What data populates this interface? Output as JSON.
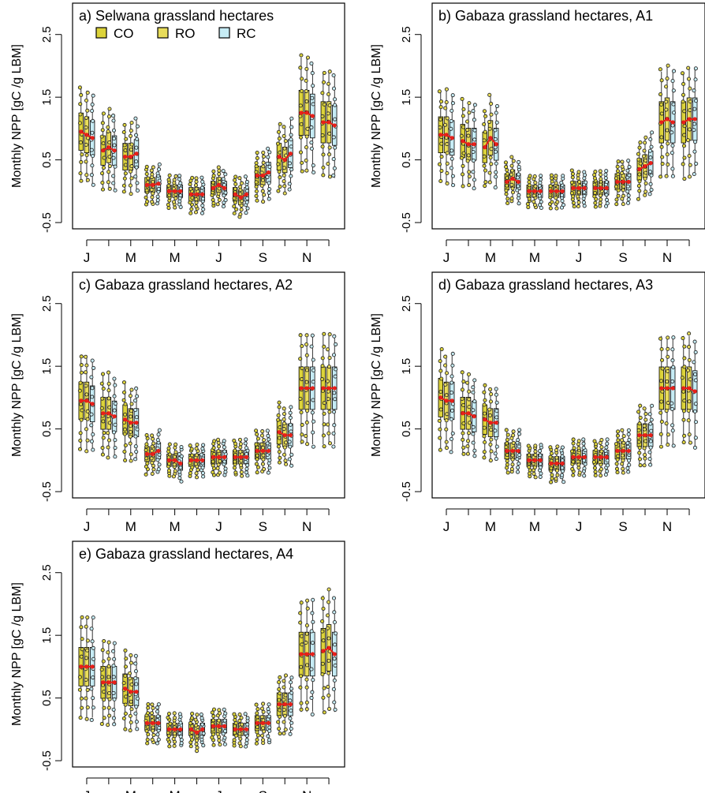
{
  "colors": {
    "CO": "#dcd33a",
    "RO": "#e8dc5a",
    "RC": "#c6ecf5",
    "mean": "#e8201a",
    "points": "#2a2a2a"
  },
  "legend": {
    "entries": [
      {
        "label": "CO",
        "color": "#dcd33a"
      },
      {
        "label": "RO",
        "color": "#e8dc5a"
      },
      {
        "label": "RC",
        "color": "#c6ecf5"
      }
    ],
    "placement": "top-left, inside panel a"
  },
  "chart_data": [
    {
      "type": "boxplot",
      "title": "a) Selwana grassland hectares",
      "ylabel": "Monthly NPP [gC /g LBM]",
      "xlabel": "",
      "ylim": [
        -0.6,
        3.0
      ],
      "yticks": [
        "-0.5",
        "0.5",
        "1.5",
        "2.5"
      ],
      "xticks": [
        "J",
        "M",
        "M",
        "J",
        "S",
        "N"
      ],
      "grid": false,
      "series_names": [
        "CO",
        "RO",
        "RC"
      ],
      "medians": [
        [
          0.95,
          0.9,
          0.85
        ],
        [
          0.65,
          0.7,
          0.65
        ],
        [
          0.55,
          0.55,
          0.6
        ],
        [
          0.1,
          0.1,
          0.12
        ],
        [
          0.0,
          0.0,
          0.0
        ],
        [
          -0.05,
          -0.05,
          -0.05
        ],
        [
          0.05,
          0.1,
          0.05
        ],
        [
          -0.05,
          -0.1,
          -0.05
        ],
        [
          0.25,
          0.25,
          0.3
        ],
        [
          0.55,
          0.5,
          0.6
        ],
        [
          1.25,
          1.25,
          1.2
        ],
        [
          1.1,
          1.1,
          1.05
        ]
      ]
    },
    {
      "type": "boxplot",
      "title": "b) Gabaza grassland hectares, A1",
      "ylabel": "Monthly NPP [gC /g LBM]",
      "xlabel": "",
      "ylim": [
        -0.6,
        3.0
      ],
      "yticks": [
        "-0.5",
        "0.5",
        "1.5",
        "2.5"
      ],
      "xticks": [
        "J",
        "M",
        "M",
        "J",
        "S",
        "N"
      ],
      "grid": false,
      "series_names": [
        "CO",
        "RO",
        "RC"
      ],
      "medians": [
        [
          0.9,
          0.9,
          0.85
        ],
        [
          0.8,
          0.75,
          0.75
        ],
        [
          0.7,
          0.85,
          0.75
        ],
        [
          0.15,
          0.2,
          0.15
        ],
        [
          0.0,
          0.0,
          0.0
        ],
        [
          0.0,
          0.0,
          0.0
        ],
        [
          0.05,
          0.05,
          0.05
        ],
        [
          0.05,
          0.05,
          0.05
        ],
        [
          0.15,
          0.15,
          0.15
        ],
        [
          0.35,
          0.4,
          0.45
        ],
        [
          1.1,
          1.15,
          1.1
        ],
        [
          1.1,
          1.15,
          1.15
        ]
      ]
    },
    {
      "type": "boxplot",
      "title": "c) Gabaza grassland hectares, A2",
      "ylabel": "Monthly NPP [gC /g LBM]",
      "xlabel": "",
      "ylim": [
        -0.6,
        3.0
      ],
      "yticks": [
        "-0.5",
        "0.5",
        "1.5",
        "2.5"
      ],
      "xticks": [
        "J",
        "M",
        "M",
        "J",
        "S",
        "N"
      ],
      "grid": false,
      "series_names": [
        "CO",
        "RO",
        "RC"
      ],
      "medians": [
        [
          0.95,
          0.95,
          0.9
        ],
        [
          0.75,
          0.75,
          0.7
        ],
        [
          0.65,
          0.6,
          0.6
        ],
        [
          0.1,
          0.1,
          0.15
        ],
        [
          0.0,
          0.0,
          -0.05
        ],
        [
          0.0,
          0.0,
          0.0
        ],
        [
          0.05,
          0.05,
          0.05
        ],
        [
          0.05,
          0.05,
          0.05
        ],
        [
          0.15,
          0.15,
          0.15
        ],
        [
          0.45,
          0.4,
          0.4
        ],
        [
          1.15,
          1.15,
          1.15
        ],
        [
          1.15,
          1.15,
          1.15
        ]
      ]
    },
    {
      "type": "boxplot",
      "title": "d) Gabaza grassland hectares, A3",
      "ylabel": "Monthly NPP [gC /g LBM]",
      "xlabel": "",
      "ylim": [
        -0.6,
        3.0
      ],
      "yticks": [
        "-0.5",
        "0.5",
        "1.5",
        "2.5"
      ],
      "xticks": [
        "J",
        "M",
        "M",
        "J",
        "S",
        "N"
      ],
      "grid": false,
      "series_names": [
        "CO",
        "RO",
        "RC"
      ],
      "medians": [
        [
          1.0,
          0.95,
          0.95
        ],
        [
          0.75,
          0.75,
          0.7
        ],
        [
          0.65,
          0.6,
          0.6
        ],
        [
          0.15,
          0.15,
          0.15
        ],
        [
          0.0,
          0.0,
          0.0
        ],
        [
          -0.05,
          -0.05,
          -0.05
        ],
        [
          0.05,
          0.05,
          0.05
        ],
        [
          0.05,
          0.05,
          0.05
        ],
        [
          0.15,
          0.15,
          0.15
        ],
        [
          0.4,
          0.4,
          0.4
        ],
        [
          1.15,
          1.15,
          1.15
        ],
        [
          1.15,
          1.15,
          1.1
        ]
      ]
    },
    {
      "type": "boxplot",
      "title": "e) Gabaza grassland hectares, A4",
      "ylabel": "Monthly NPP [gC /g LBM]",
      "xlabel": "",
      "ylim": [
        -0.6,
        3.0
      ],
      "yticks": [
        "-0.5",
        "0.5",
        "1.5",
        "2.5"
      ],
      "xticks": [
        "J",
        "M",
        "M",
        "J",
        "S",
        "N"
      ],
      "grid": false,
      "series_names": [
        "CO",
        "RO",
        "RC"
      ],
      "medians": [
        [
          1.0,
          1.0,
          1.0
        ],
        [
          0.75,
          0.75,
          0.75
        ],
        [
          0.65,
          0.6,
          0.6
        ],
        [
          0.1,
          0.1,
          0.1
        ],
        [
          0.0,
          0.0,
          0.0
        ],
        [
          0.0,
          -0.05,
          0.0
        ],
        [
          0.05,
          0.05,
          0.05
        ],
        [
          0.0,
          0.0,
          0.0
        ],
        [
          0.1,
          0.1,
          0.1
        ],
        [
          0.4,
          0.4,
          0.4
        ],
        [
          1.2,
          1.2,
          1.2
        ],
        [
          1.25,
          1.3,
          1.2
        ]
      ]
    }
  ]
}
